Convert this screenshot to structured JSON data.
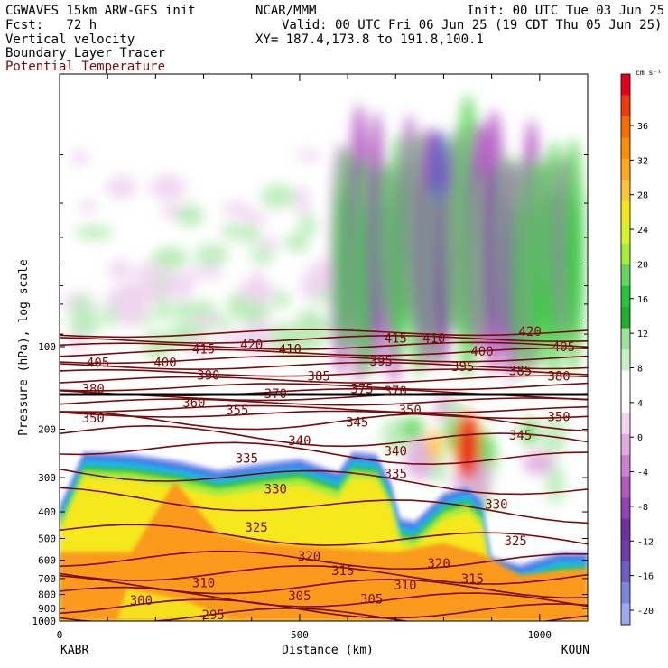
{
  "header": {
    "title": "CGWAVES 15km ARW-GFS init",
    "center": "NCAR/MMM",
    "init": "Init: 00 UTC Tue 03 Jun 25",
    "fcst": "Fcst:   72 h",
    "valid": "Valid: 00 UTC Fri 06 Jun 25 (19 CDT Thu 05 Jun 25)",
    "xy": "XY= 187.4,173.8 to 191.8,100.1",
    "field1": "Vertical velocity",
    "field2": "Boundary Layer Tracer",
    "field3": "Potential Temperature"
  },
  "chart_data": {
    "type": "heatmap",
    "title": "",
    "xlabel": "Distance (km)",
    "ylabel": "Pressure (hPa), log scale",
    "xlim": [
      0,
      1100
    ],
    "ylim": [
      1000,
      10
    ],
    "y_scale": "log",
    "x_ticks": [
      0,
      500,
      1000
    ],
    "y_ticks": [
      100,
      200,
      300,
      400,
      500,
      600,
      700,
      800,
      900,
      1000
    ],
    "x_endpoints": {
      "left": "KABR",
      "right": "KOUN"
    },
    "colorbar": {
      "unit": "cm s⁻¹",
      "tick_labels": [
        36,
        32,
        28,
        24,
        20,
        16,
        12,
        8,
        4,
        0,
        -4,
        -8,
        -12,
        -16,
        -20
      ],
      "colors": [
        "#e8001a",
        "#f0380a",
        "#f66a00",
        "#fb8e00",
        "#fda820",
        "#fec338",
        "#f5e81a",
        "#d9f22a",
        "#a7ec3a",
        "#5fd85a",
        "#26c13a",
        "#1fae2c",
        "#9be09b",
        "#c6f0c6",
        "#ffffff",
        "#ffffff",
        "#f0d4f0",
        "#e0a8e0",
        "#cc7fd0",
        "#b058c0",
        "#9040b0",
        "#7030a0",
        "#6f3aa8",
        "#6b5dc2",
        "#7a86dc",
        "#9da9ee"
      ]
    },
    "pt_contours": [
      {
        "value": 295,
        "p_left": 940,
        "p_right": 990
      },
      {
        "value": 300,
        "p_left": 880,
        "p_right": 930
      },
      {
        "value": 305,
        "p_left": 800,
        "p_right": 860
      },
      {
        "value": 310,
        "p_left": 730,
        "p_right": 770
      },
      {
        "value": 315,
        "p_left": 660,
        "p_right": 690
      },
      {
        "value": 320,
        "p_left": 590,
        "p_right": 610
      },
      {
        "value": 325,
        "p_left": 470,
        "p_right": 520
      },
      {
        "value": 330,
        "p_left": 350,
        "p_right": 410
      },
      {
        "value": 335,
        "p_left": 280,
        "p_right": 330
      },
      {
        "value": 340,
        "p_left": 230,
        "p_right": 260
      },
      {
        "value": 345,
        "p_left": 205,
        "p_right": 225
      },
      {
        "value": 350,
        "p_left": 185,
        "p_right": 190
      },
      {
        "value": 355,
        "p_left": 175,
        "p_right": 178
      },
      {
        "value": 360,
        "p_left": 168,
        "p_right": 170
      },
      {
        "value": 365,
        "p_left": 160,
        "p_right": 158
      },
      {
        "value": 370,
        "p_left": 153,
        "p_right": 152
      },
      {
        "value": 375,
        "p_left": 147,
        "p_right": 146
      },
      {
        "value": 380,
        "p_left": 141,
        "p_right": 139
      },
      {
        "value": 385,
        "p_left": 133,
        "p_right": 131
      },
      {
        "value": 390,
        "p_left": 125,
        "p_right": 124
      },
      {
        "value": 395,
        "p_left": 118,
        "p_right": 117
      },
      {
        "value": 400,
        "p_left": 112,
        "p_right": 110
      },
      {
        "value": 405,
        "p_left": 106,
        "p_right": 104
      },
      {
        "value": 410,
        "p_left": 100,
        "p_right": 99
      },
      {
        "value": 415,
        "p_left": 95,
        "p_right": 93
      },
      {
        "value": 420,
        "p_left": 90,
        "p_right": 88
      }
    ],
    "pt_labels": [
      {
        "text": "295",
        "x": 320,
        "p": 950
      },
      {
        "text": "300",
        "x": 170,
        "p": 840
      },
      {
        "text": "305",
        "x": 500,
        "p": 810
      },
      {
        "text": "305",
        "x": 650,
        "p": 830
      },
      {
        "text": "310",
        "x": 300,
        "p": 725
      },
      {
        "text": "310",
        "x": 720,
        "p": 740
      },
      {
        "text": "315",
        "x": 590,
        "p": 655
      },
      {
        "text": "315",
        "x": 860,
        "p": 700
      },
      {
        "text": "320",
        "x": 520,
        "p": 580
      },
      {
        "text": "320",
        "x": 790,
        "p": 615
      },
      {
        "text": "325",
        "x": 410,
        "p": 455
      },
      {
        "text": "325",
        "x": 950,
        "p": 510
      },
      {
        "text": "330",
        "x": 450,
        "p": 330
      },
      {
        "text": "330",
        "x": 910,
        "p": 375
      },
      {
        "text": "335",
        "x": 390,
        "p": 255
      },
      {
        "text": "335",
        "x": 700,
        "p": 290
      },
      {
        "text": "340",
        "x": 500,
        "p": 220
      },
      {
        "text": "340",
        "x": 700,
        "p": 240
      },
      {
        "text": "345",
        "x": 620,
        "p": 188
      },
      {
        "text": "345",
        "x": 960,
        "p": 210
      },
      {
        "text": "350",
        "x": 70,
        "p": 182
      },
      {
        "text": "350",
        "x": 730,
        "p": 170
      },
      {
        "text": "350",
        "x": 1040,
        "p": 180
      },
      {
        "text": "355",
        "x": 370,
        "p": 170
      },
      {
        "text": "360",
        "x": 280,
        "p": 160
      },
      {
        "text": "370",
        "x": 450,
        "p": 148
      },
      {
        "text": "370",
        "x": 700,
        "p": 145
      },
      {
        "text": "375",
        "x": 630,
        "p": 142
      },
      {
        "text": "380",
        "x": 70,
        "p": 142
      },
      {
        "text": "380",
        "x": 1040,
        "p": 128
      },
      {
        "text": "385",
        "x": 540,
        "p": 128
      },
      {
        "text": "385",
        "x": 960,
        "p": 122
      },
      {
        "text": "390",
        "x": 310,
        "p": 127
      },
      {
        "text": "395",
        "x": 670,
        "p": 113
      },
      {
        "text": "395",
        "x": 840,
        "p": 118
      },
      {
        "text": "400",
        "x": 220,
        "p": 114
      },
      {
        "text": "400",
        "x": 880,
        "p": 104
      },
      {
        "text": "405",
        "x": 80,
        "p": 114
      },
      {
        "text": "405",
        "x": 1050,
        "p": 100
      },
      {
        "text": "410",
        "x": 480,
        "p": 102
      },
      {
        "text": "410",
        "x": 780,
        "p": 93
      },
      {
        "text": "415",
        "x": 300,
        "p": 102
      },
      {
        "text": "415",
        "x": 700,
        "p": 93
      },
      {
        "text": "420",
        "x": 400,
        "p": 98
      },
      {
        "text": "420",
        "x": 980,
        "p": 88
      }
    ],
    "boundary_layer_top": [
      {
        "x": 0,
        "p": 380
      },
      {
        "x": 50,
        "p": 240
      },
      {
        "x": 150,
        "p": 245
      },
      {
        "x": 250,
        "p": 260
      },
      {
        "x": 330,
        "p": 280
      },
      {
        "x": 420,
        "p": 265
      },
      {
        "x": 500,
        "p": 255
      },
      {
        "x": 580,
        "p": 285
      },
      {
        "x": 610,
        "p": 240
      },
      {
        "x": 660,
        "p": 245
      },
      {
        "x": 690,
        "p": 310
      },
      {
        "x": 710,
        "p": 420
      },
      {
        "x": 740,
        "p": 430
      },
      {
        "x": 800,
        "p": 340
      },
      {
        "x": 850,
        "p": 320
      },
      {
        "x": 880,
        "p": 360
      },
      {
        "x": 900,
        "p": 580
      },
      {
        "x": 960,
        "p": 620
      },
      {
        "x": 1040,
        "p": 560
      },
      {
        "x": 1100,
        "p": 560
      }
    ]
  }
}
